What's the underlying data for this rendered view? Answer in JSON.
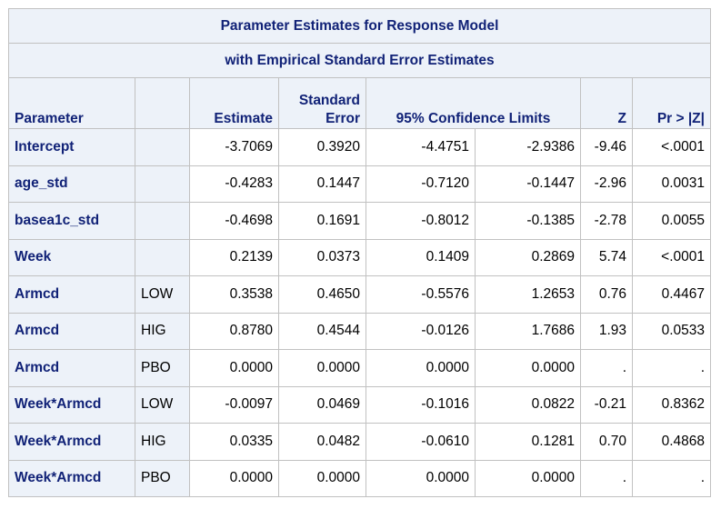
{
  "table": {
    "title": "Parameter Estimates for Response Model",
    "subtitle": "with Empirical Standard Error Estimates",
    "columns": {
      "parameter": "Parameter",
      "level": "",
      "estimate": "Estimate",
      "stderr_line1": "Standard",
      "stderr_line2": "Error",
      "ci": "95% Confidence Limits",
      "z": "Z",
      "p": "Pr > |Z|"
    },
    "rows": [
      {
        "parameter": "Intercept",
        "level": "",
        "estimate": "-3.7069",
        "stderr": "0.3920",
        "lower": "-4.4751",
        "upper": "-2.9386",
        "z": "-9.46",
        "p": "<.0001"
      },
      {
        "parameter": "age_std",
        "level": "",
        "estimate": "-0.4283",
        "stderr": "0.1447",
        "lower": "-0.7120",
        "upper": "-0.1447",
        "z": "-2.96",
        "p": "0.0031"
      },
      {
        "parameter": "basea1c_std",
        "level": "",
        "estimate": "-0.4698",
        "stderr": "0.1691",
        "lower": "-0.8012",
        "upper": "-0.1385",
        "z": "-2.78",
        "p": "0.0055"
      },
      {
        "parameter": "Week",
        "level": "",
        "estimate": "0.2139",
        "stderr": "0.0373",
        "lower": "0.1409",
        "upper": "0.2869",
        "z": "5.74",
        "p": "<.0001"
      },
      {
        "parameter": "Armcd",
        "level": "LOW",
        "estimate": "0.3538",
        "stderr": "0.4650",
        "lower": "-0.5576",
        "upper": "1.2653",
        "z": "0.76",
        "p": "0.4467"
      },
      {
        "parameter": "Armcd",
        "level": "HIG",
        "estimate": "0.8780",
        "stderr": "0.4544",
        "lower": "-0.0126",
        "upper": "1.7686",
        "z": "1.93",
        "p": "0.0533"
      },
      {
        "parameter": "Armcd",
        "level": "PBO",
        "estimate": "0.0000",
        "stderr": "0.0000",
        "lower": "0.0000",
        "upper": "0.0000",
        "z": ".",
        "p": "."
      },
      {
        "parameter": "Week*Armcd",
        "level": "LOW",
        "estimate": "-0.0097",
        "stderr": "0.0469",
        "lower": "-0.1016",
        "upper": "0.0822",
        "z": "-0.21",
        "p": "0.8362"
      },
      {
        "parameter": "Week*Armcd",
        "level": "HIG",
        "estimate": "0.0335",
        "stderr": "0.0482",
        "lower": "-0.0610",
        "upper": "0.1281",
        "z": "0.70",
        "p": "0.4868"
      },
      {
        "parameter": "Week*Armcd",
        "level": "PBO",
        "estimate": "0.0000",
        "stderr": "0.0000",
        "lower": "0.0000",
        "upper": "0.0000",
        "z": ".",
        "p": "."
      }
    ]
  },
  "colors": {
    "header_bg": "#edf2f9",
    "header_text": "#112277",
    "border": "#c1c1c1"
  }
}
